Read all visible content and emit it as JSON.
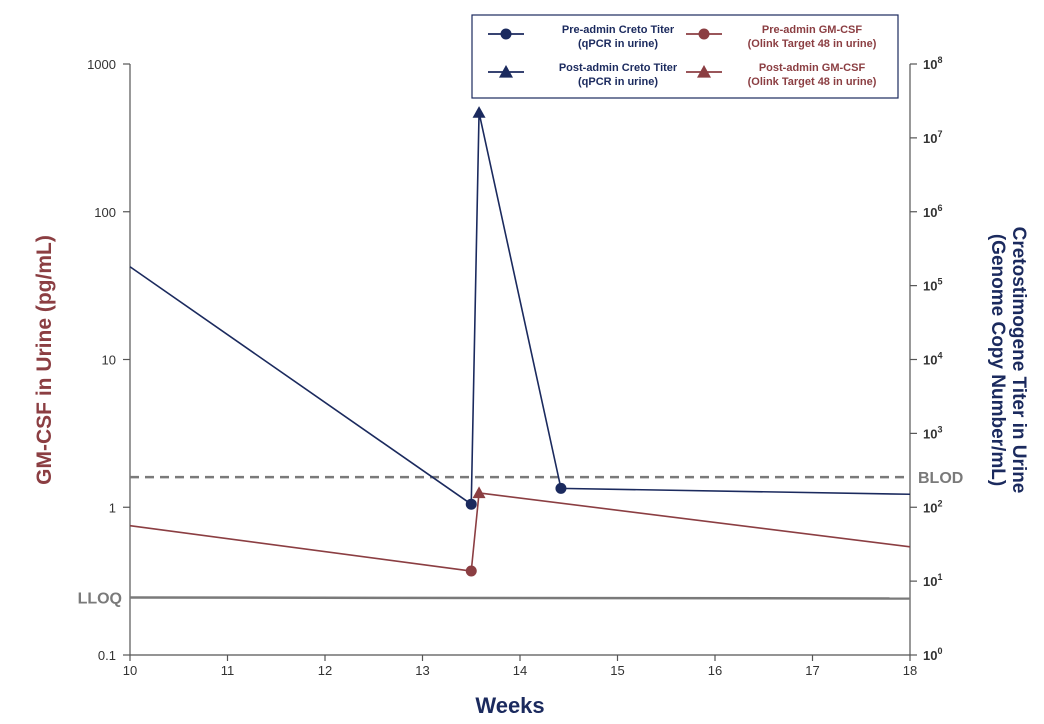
{
  "chart_data": {
    "type": "line",
    "xlabel": "Weeks",
    "ylabel_left": "GM-CSF in Urine (pg/mL)",
    "ylabel_right_line1": "Cretostimogene Titer in Urine",
    "ylabel_right_line2": "(Genome Copy Number/mL)",
    "x_ticks": [
      "10",
      "11",
      "12",
      "13",
      "14",
      "15",
      "16",
      "17",
      "18"
    ],
    "x_range": [
      10,
      18
    ],
    "y_left_scale": "log",
    "y_left_range": [
      0.1,
      1000
    ],
    "y_left_ticks": [
      "0.1",
      "1",
      "10",
      "100",
      "1000"
    ],
    "y_right_scale": "log",
    "y_right_range": [
      1,
      100000000
    ],
    "y_right_ticks": [
      {
        "base": "10",
        "exp": "0"
      },
      {
        "base": "10",
        "exp": "1"
      },
      {
        "base": "10",
        "exp": "2"
      },
      {
        "base": "10",
        "exp": "3"
      },
      {
        "base": "10",
        "exp": "4"
      },
      {
        "base": "10",
        "exp": "5"
      },
      {
        "base": "10",
        "exp": "6"
      },
      {
        "base": "10",
        "exp": "7"
      },
      {
        "base": "10",
        "exp": "8"
      }
    ],
    "reference_lines": {
      "blod_label": "BLOD",
      "blod_value_left": 1.6,
      "lloq_label": "LLOQ",
      "lloq_value_left": 0.245
    },
    "series": [
      {
        "name": "Cretostimogene Titer",
        "axis": "right",
        "color": "#1b2a5e",
        "points": [
          {
            "x": 10.0,
            "y": 180000,
            "marker": "none"
          },
          {
            "x": 13.5,
            "y": 110,
            "marker": "circle"
          },
          {
            "x": 13.58,
            "y": 22000000,
            "marker": "triangle"
          },
          {
            "x": 14.42,
            "y": 180,
            "marker": "circle"
          },
          {
            "x": 18.0,
            "y": 150,
            "marker": "none"
          }
        ]
      },
      {
        "name": "GM-CSF",
        "axis": "left",
        "color": "#8b3e42",
        "points": [
          {
            "x": 10.0,
            "y": 0.75,
            "marker": "none"
          },
          {
            "x": 13.5,
            "y": 0.37,
            "marker": "circle"
          },
          {
            "x": 13.58,
            "y": 1.25,
            "marker": "triangle"
          },
          {
            "x": 18.0,
            "y": 0.54,
            "marker": "none"
          }
        ]
      }
    ],
    "legend": {
      "placement": "top-right",
      "colors": {
        "navy": "#1b2a5e",
        "red": "#8b3e42",
        "border": "#1b2a5e"
      },
      "entries": [
        {
          "line1": "Pre-admin Creto Titer",
          "line2": "(qPCR in urine)",
          "marker": "circle",
          "color": "navy"
        },
        {
          "line1": "Post-admin Creto Titer",
          "line2": "(qPCR in urine)",
          "marker": "triangle",
          "color": "navy"
        },
        {
          "line1": "Pre-admin GM-CSF",
          "line2": "(Olink Target 48 in urine)",
          "marker": "circle",
          "color": "red"
        },
        {
          "line1": "Post-admin GM-CSF",
          "line2": "(Olink Target 48 in urine)",
          "marker": "triangle",
          "color": "red"
        }
      ]
    }
  }
}
